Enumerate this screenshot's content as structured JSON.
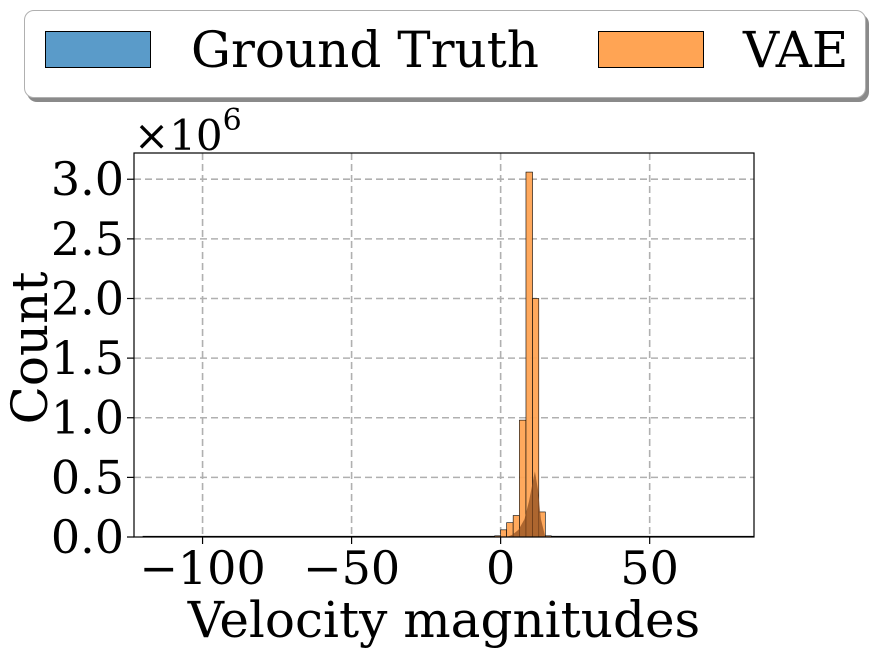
{
  "chart_data": {
    "type": "bar",
    "title": "",
    "xlabel": "Velocity magnitudes",
    "ylabel": "Count",
    "offset_label": "×10",
    "offset_exponent": "6",
    "xlim": [
      -123,
      85
    ],
    "ylim": [
      0,
      3.22
    ],
    "xticks": [
      -100,
      -50,
      0,
      50
    ],
    "xtick_labels": [
      "−100",
      "−50",
      "0",
      "50"
    ],
    "yticks": [
      0.0,
      0.5,
      1.0,
      1.5,
      2.0,
      2.5,
      3.0
    ],
    "ytick_labels": [
      "0.0",
      "0.5",
      "1.0",
      "1.5",
      "2.0",
      "2.5",
      "3.0"
    ],
    "grid": true,
    "legend_position": "top",
    "series": [
      {
        "name": "Ground Truth",
        "color": "#5a9bc9",
        "bins": [
          {
            "start": -120,
            "end": 85,
            "count": 0.0
          }
        ]
      },
      {
        "name": "VAE",
        "color": "#ffa454",
        "bins": [
          {
            "start": -2.0,
            "end": 0.0,
            "count": 0.01
          },
          {
            "start": 0.0,
            "end": 2.0,
            "count": 0.06
          },
          {
            "start": 2.0,
            "end": 4.2,
            "count": 0.12
          },
          {
            "start": 4.2,
            "end": 6.3,
            "count": 0.18
          },
          {
            "start": 6.3,
            "end": 8.5,
            "count": 0.98
          },
          {
            "start": 8.5,
            "end": 10.7,
            "count": 3.06
          },
          {
            "start": 10.7,
            "end": 12.8,
            "count": 2.0
          },
          {
            "start": 12.8,
            "end": 15.0,
            "count": 0.21
          },
          {
            "start": 15.0,
            "end": 17.0,
            "count": 0.01
          }
        ]
      }
    ],
    "overlay_curve": {
      "name": "Ground Truth overlap",
      "color": "#8a4a1c",
      "points": [
        [
          2,
          0.0
        ],
        [
          4,
          0.02
        ],
        [
          6,
          0.06
        ],
        [
          8,
          0.15
        ],
        [
          9.5,
          0.3
        ],
        [
          10.7,
          0.45
        ],
        [
          11.5,
          0.55
        ],
        [
          12.5,
          0.4
        ],
        [
          13.5,
          0.15
        ],
        [
          15,
          0.0
        ]
      ]
    }
  }
}
